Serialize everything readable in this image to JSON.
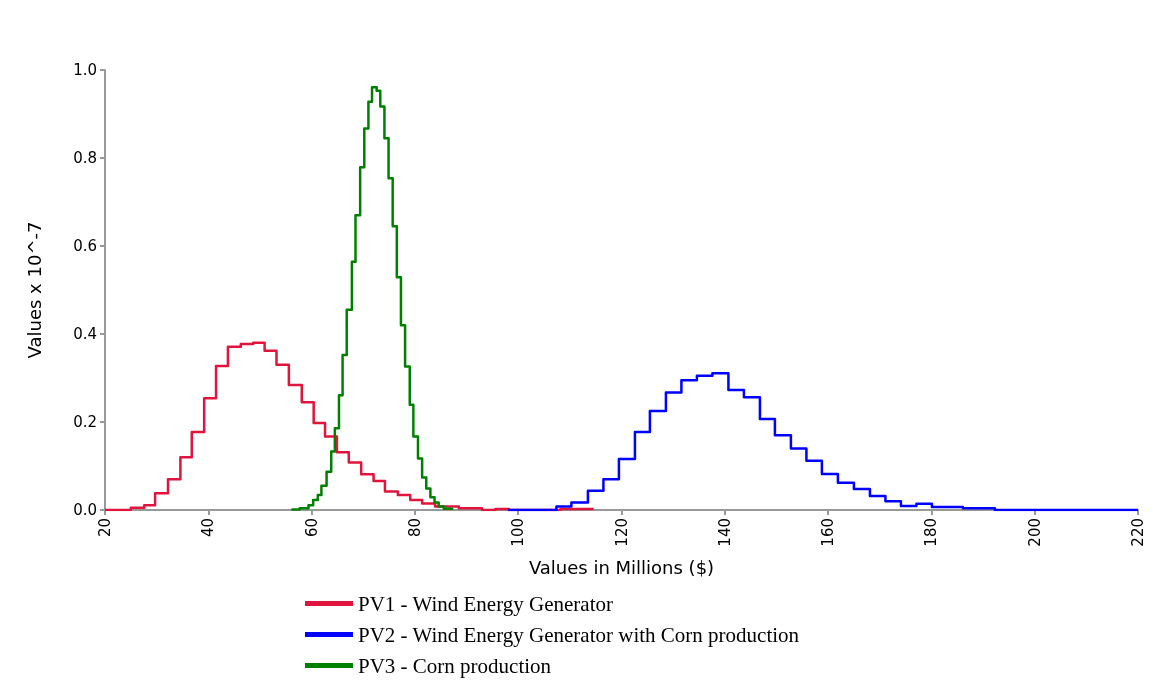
{
  "chart_data": {
    "type": "step",
    "xlabel": "Values in Millions ($)",
    "ylabel": "Values x 10^-7",
    "xlim": [
      20,
      220
    ],
    "xticks": [
      20,
      40,
      60,
      80,
      100,
      120,
      140,
      160,
      180,
      200,
      220
    ],
    "ylim": [
      0,
      1
    ],
    "yticks": [
      {
        "value": 0,
        "label": "0.0"
      },
      0.2,
      0.4,
      0.6,
      0.8,
      {
        "value": 1,
        "label": "1.0"
      }
    ],
    "grid": false,
    "legend": "bottom",
    "series": [
      {
        "name": "PV1 - Wind Energy Generator",
        "color": "#e0143c",
        "x": [
          20,
          25.0,
          27.6,
          29.7,
          32.2,
          34.6,
          36.8,
          39.2,
          41.5,
          43.8,
          46.3,
          48.7,
          50.9,
          53.2,
          55.6,
          58.1,
          60.4,
          62.6,
          64.9,
          67.2,
          69.6,
          72.0,
          74.2,
          76.7,
          79.1,
          81.4,
          83.9,
          88.5,
          93.0,
          95.6,
          98.2,
          108.2,
          114.4
        ],
        "values": [
          0,
          0.005,
          0.011,
          0.038,
          0.07,
          0.12,
          0.177,
          0.254,
          0.327,
          0.371,
          0.377,
          0.38,
          0.362,
          0.33,
          0.284,
          0.245,
          0.198,
          0.167,
          0.131,
          0.108,
          0.081,
          0.066,
          0.042,
          0.034,
          0.023,
          0.015,
          0.008,
          0.004,
          0,
          0.002,
          0,
          0.002,
          0
        ]
      },
      {
        "name": "PV2 - Wind Energy Generator with Corn production",
        "color": "#0000ff",
        "x": [
          98,
          107.4,
          110.3,
          113.5,
          116.5,
          119.5,
          122.6,
          125.5,
          128.6,
          131.6,
          134.6,
          137.6,
          140.7,
          143.7,
          146.8,
          149.7,
          152.8,
          155.8,
          158.8,
          161.9,
          165.0,
          168.1,
          171.1,
          174.1,
          177.1,
          180.1,
          186.1,
          192.3,
          220
        ],
        "values": [
          0,
          0.008,
          0.017,
          0.044,
          0.07,
          0.116,
          0.177,
          0.225,
          0.267,
          0.295,
          0.305,
          0.311,
          0.273,
          0.256,
          0.207,
          0.17,
          0.14,
          0.112,
          0.082,
          0.062,
          0.048,
          0.032,
          0.02,
          0.009,
          0.014,
          0.007,
          0.004,
          0,
          0
        ]
      },
      {
        "name": "PV3 - Corn production",
        "color": "#008000",
        "x": [
          56.1,
          57.7,
          59.4,
          60.3,
          61.2,
          61.9,
          62.9,
          63.8,
          64.5,
          65.3,
          66.0,
          66.8,
          67.8,
          68.5,
          69.4,
          70.2,
          71.0,
          71.7,
          72.6,
          73.3,
          74.1,
          74.9,
          75.7,
          76.5,
          77.3,
          78.1,
          79.0,
          79.7,
          80.6,
          81.4,
          82.2,
          83.0,
          83.8,
          84.6,
          85.6,
          87.2
        ],
        "values": [
          0.001,
          0.004,
          0.011,
          0.023,
          0.034,
          0.055,
          0.087,
          0.133,
          0.186,
          0.261,
          0.352,
          0.455,
          0.564,
          0.67,
          0.779,
          0.867,
          0.928,
          0.961,
          0.953,
          0.917,
          0.845,
          0.754,
          0.645,
          0.529,
          0.42,
          0.326,
          0.239,
          0.167,
          0.117,
          0.074,
          0.049,
          0.029,
          0.017,
          0.008,
          0.003,
          0
        ]
      }
    ]
  }
}
